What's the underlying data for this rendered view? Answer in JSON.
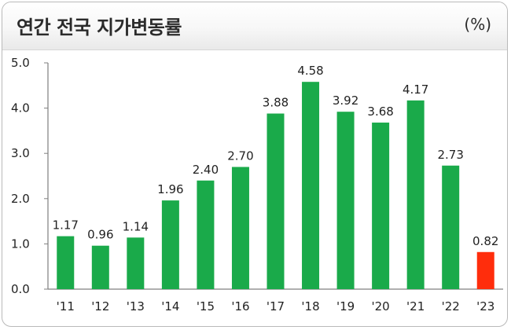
{
  "header": {
    "title": "연간 전국 지가변동률",
    "unit": "(%)"
  },
  "colors": {
    "bar": "#1aaa4a",
    "highlight": "#ff2d0c",
    "axis": "#7f7f7f"
  },
  "chart_data": {
    "type": "bar",
    "title": "연간 전국 지가변동률",
    "ylabel": "(%)",
    "xlabel": "",
    "categories": [
      "'11",
      "'12",
      "'13",
      "'14",
      "'15",
      "'16",
      "'17",
      "'18",
      "'19",
      "'20",
      "'21",
      "'22",
      "'23"
    ],
    "values": [
      1.17,
      0.96,
      1.14,
      1.96,
      2.4,
      2.7,
      3.88,
      4.58,
      3.92,
      3.68,
      4.17,
      2.73,
      0.82
    ],
    "value_labels": [
      "1.17",
      "0.96",
      "1.14",
      "1.96",
      "2.40",
      "2.70",
      "3.88",
      "4.58",
      "3.92",
      "3.68",
      "4.17",
      "2.73",
      "0.82"
    ],
    "highlight_index": 12,
    "ylim": [
      0,
      5
    ],
    "yticks": [
      "0.0",
      "1.0",
      "2.0",
      "3.0",
      "4.0",
      "5.0"
    ],
    "grid": false,
    "legend": "none"
  }
}
